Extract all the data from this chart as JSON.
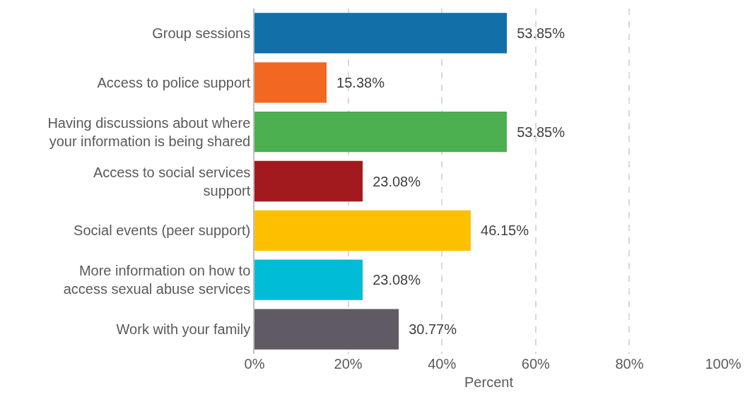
{
  "chart_data": {
    "type": "bar",
    "orientation": "horizontal",
    "xlabel": "Percent",
    "categories": [
      "Group sessions",
      "Access to police support",
      "Having discussions about where your information is being shared",
      "Access to social services support",
      "Social events (peer support)",
      "More information on how to access sexual abuse services",
      "Work with your family"
    ],
    "values": [
      53.85,
      15.38,
      53.85,
      23.08,
      46.15,
      23.08,
      30.77
    ],
    "value_labels": [
      "53.85%",
      "15.38%",
      "53.85%",
      "23.08%",
      "46.15%",
      "23.08%",
      "30.77%"
    ],
    "colors": [
      "#126fa8",
      "#f26722",
      "#4cb050",
      "#a31a1e",
      "#fcc000",
      "#00bcd6",
      "#5f5a63"
    ],
    "xlim": [
      0,
      100
    ],
    "xticks": [
      {
        "value": 0,
        "label": "0%"
      },
      {
        "value": 20,
        "label": "20%"
      },
      {
        "value": 40,
        "label": "40%"
      },
      {
        "value": 60,
        "label": "60%"
      },
      {
        "value": 80,
        "label": "80%"
      },
      {
        "value": 100,
        "label": "100%"
      }
    ],
    "grid": "x"
  }
}
